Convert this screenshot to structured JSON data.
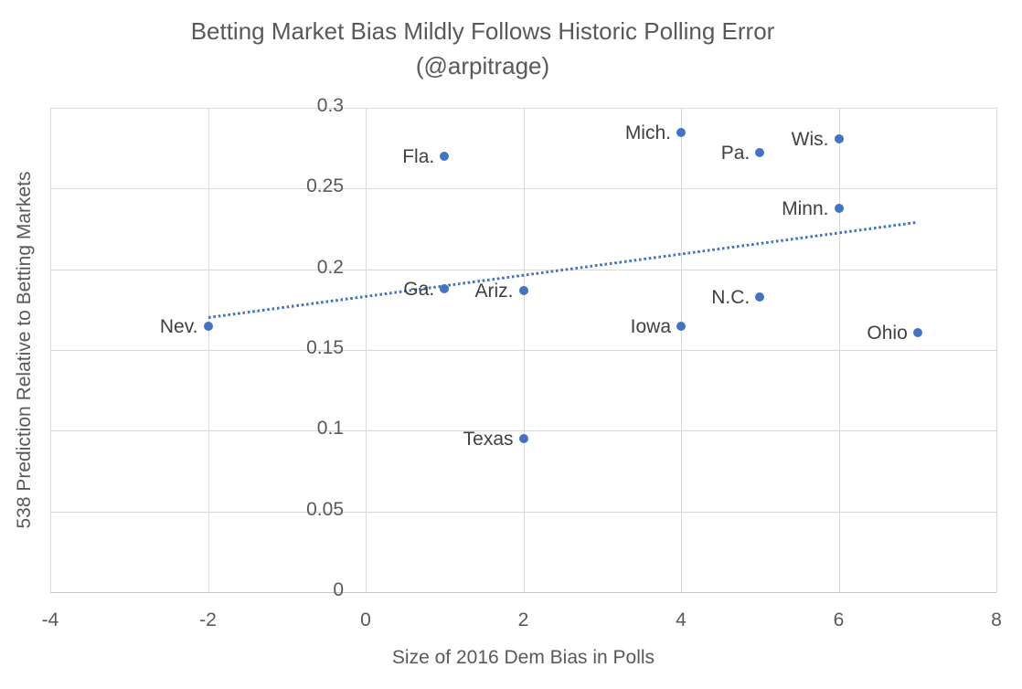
{
  "title": {
    "line1": "Betting Market Bias Mildly Follows Historic Polling Error",
    "line2": "(@arpitrage)"
  },
  "chart_data": {
    "type": "scatter",
    "title": "Betting Market Bias Mildly Follows Historic Polling Error",
    "subtitle": "(@arpitrage)",
    "xlabel": "Size of 2016 Dem Bias in Polls",
    "ylabel": "538 Prediction Relative to Betting Markets",
    "xlim": [
      -4,
      8
    ],
    "ylim": [
      0,
      0.3
    ],
    "x_ticks": [
      -4,
      -2,
      0,
      2,
      4,
      6,
      8
    ],
    "x_tick_labels": [
      "-4",
      "-2",
      "0",
      "2",
      "4",
      "6",
      "8"
    ],
    "y_ticks": [
      0,
      0.05,
      0.1,
      0.15,
      0.2,
      0.25,
      0.3
    ],
    "y_tick_labels": [
      "0",
      "0.05",
      "0.1",
      "0.15",
      "0.2",
      "0.25",
      "0.3"
    ],
    "grid": true,
    "legend": "none",
    "points": [
      {
        "label": "Nev.",
        "x": -2,
        "y": 0.165
      },
      {
        "label": "Fla.",
        "x": 1,
        "y": 0.27
      },
      {
        "label": "Ga.",
        "x": 1,
        "y": 0.188
      },
      {
        "label": "Ariz.",
        "x": 2,
        "y": 0.187
      },
      {
        "label": "Texas",
        "x": 2,
        "y": 0.095
      },
      {
        "label": "Mich.",
        "x": 4,
        "y": 0.285
      },
      {
        "label": "Iowa",
        "x": 4,
        "y": 0.165
      },
      {
        "label": "Pa.",
        "x": 5,
        "y": 0.272
      },
      {
        "label": "N.C.",
        "x": 5,
        "y": 0.183
      },
      {
        "label": "Wis.",
        "x": 6,
        "y": 0.281
      },
      {
        "label": "Minn.",
        "x": 6,
        "y": 0.238
      },
      {
        "label": "Ohio",
        "x": 7,
        "y": 0.161
      }
    ],
    "trendline": {
      "style": "dotted",
      "x1": -2,
      "y1": 0.171,
      "x2": 7,
      "y2": 0.23
    },
    "colors": {
      "point": "#4472C4",
      "trendline": "#4472C4",
      "gridline": "#D9D9D9",
      "axis_line": "#C4C4C4",
      "axis_text": "#595959",
      "label_text": "#404040",
      "title_text": "#595959",
      "background": "#FFFFFF"
    }
  }
}
